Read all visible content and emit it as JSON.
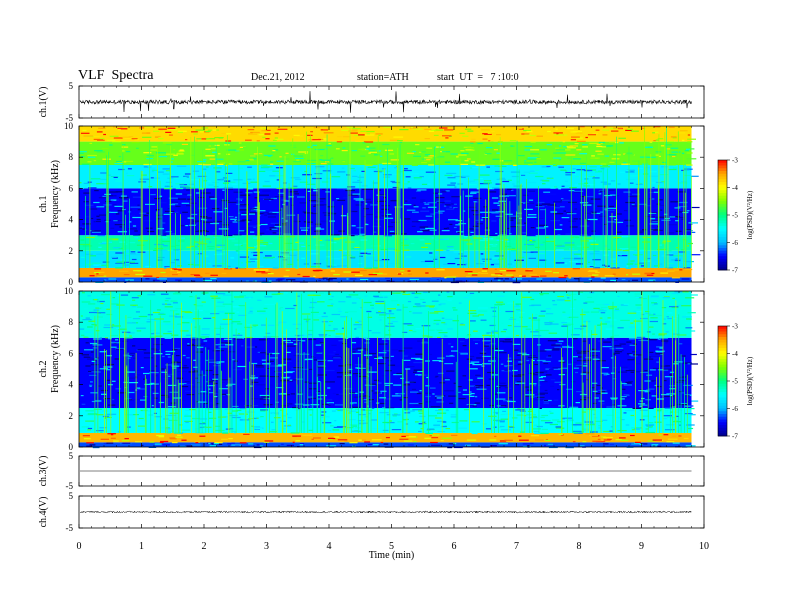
{
  "header": {
    "title": "VLF  Spectra",
    "date": "Dec.21, 2012",
    "station": "station=ATH",
    "start": "start  UT  =   7 :10:0"
  },
  "colors": {
    "colormap": [
      "#00008b",
      "#0000ff",
      "#00bfff",
      "#00ffff",
      "#00ff80",
      "#80ff00",
      "#ffff00",
      "#ffa500",
      "#ff0000",
      "#ffffff"
    ]
  },
  "chart_data": [
    {
      "type": "line",
      "panel": "ch1-waveform",
      "ylabel": "ch.1(V)",
      "ylim": [
        -5,
        5
      ],
      "yticks": [
        -5,
        5
      ],
      "description_level": 0.2,
      "series": [
        {
          "values_range": [
            -1.2,
            1.2
          ]
        }
      ]
    },
    {
      "type": "heatmap",
      "panel": "ch1-spectrogram",
      "ylabel": [
        "ch.1",
        "Frequency  (kHz)"
      ],
      "ylim": [
        0,
        10
      ],
      "yticks": [
        0,
        2,
        4,
        6,
        8,
        10
      ],
      "colorbar": {
        "label": "log(PSD)(V²/Hz)",
        "ticks": [
          -7,
          -6,
          -5,
          -4,
          -3
        ],
        "range": [
          -7,
          -3
        ]
      },
      "bands_khz_log_psd": [
        {
          "f": [
            0.0,
            0.3
          ],
          "v": -6.3
        },
        {
          "f": [
            0.3,
            0.9
          ],
          "v": -3.5
        },
        {
          "f": [
            0.9,
            2.0
          ],
          "v": -5.7
        },
        {
          "f": [
            2.0,
            3.0
          ],
          "v": -5.2
        },
        {
          "f": [
            3.0,
            6.0
          ],
          "v": -6.5
        },
        {
          "f": [
            6.0,
            7.5
          ],
          "v": -5.6
        },
        {
          "f": [
            7.5,
            9.0
          ],
          "v": -4.6
        },
        {
          "f": [
            9.0,
            10.0
          ],
          "v": -3.8
        }
      ]
    },
    {
      "type": "heatmap",
      "panel": "ch2-spectrogram",
      "ylabel": [
        "ch.2",
        "Frequency  (kHz)"
      ],
      "ylim": [
        0,
        10
      ],
      "yticks": [
        0,
        2,
        4,
        6,
        8,
        10
      ],
      "colorbar": {
        "label": "log(PSD)(V²/Hz)",
        "ticks": [
          -7,
          -6,
          -5,
          -4,
          -3
        ],
        "range": [
          -7,
          -3
        ]
      },
      "bands_khz_log_psd": [
        {
          "f": [
            0.0,
            0.3
          ],
          "v": -6.3
        },
        {
          "f": [
            0.3,
            0.9
          ],
          "v": -3.6
        },
        {
          "f": [
            0.9,
            2.5
          ],
          "v": -5.5
        },
        {
          "f": [
            2.5,
            7.0
          ],
          "v": -6.5
        },
        {
          "f": [
            7.0,
            10.0
          ],
          "v": -5.4
        }
      ]
    },
    {
      "type": "line",
      "panel": "ch3-waveform",
      "ylabel": "ch.3(V)",
      "ylim": [
        -5,
        5
      ],
      "yticks": [
        -5,
        5
      ],
      "series": [
        {
          "values_range": [
            0,
            0
          ]
        }
      ]
    },
    {
      "type": "line",
      "panel": "ch4-waveform",
      "ylabel": "ch.4(V)",
      "ylim": [
        -5,
        5
      ],
      "yticks": [
        -5,
        5
      ],
      "series": [
        {
          "values_range": [
            -0.3,
            0.3
          ]
        }
      ]
    }
  ],
  "xaxis": {
    "label": "Time  (min)",
    "ticks": [
      0,
      1,
      2,
      3,
      4,
      5,
      6,
      7,
      8,
      9,
      10
    ],
    "range": [
      0,
      10
    ],
    "data_end": 9.8
  },
  "labels": {
    "ch1_v": "ch.1(V)",
    "ch1_freq_a": "ch.1",
    "ch1_freq_b": "Frequency  (kHz)",
    "ch2_freq_a": "ch.2",
    "ch2_freq_b": "Frequency  (kHz)",
    "ch3_v": "ch.3(V)",
    "ch4_v": "ch.4(V)",
    "colorbar": "log(PSD)(V²/Hz)"
  }
}
